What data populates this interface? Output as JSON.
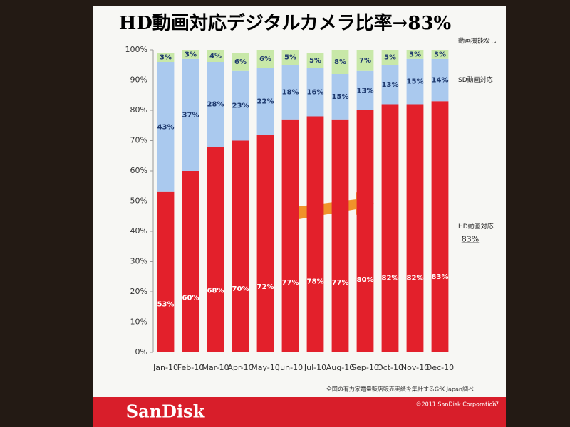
{
  "chart_data": {
    "type": "stacked_bar",
    "title": "HD動画対応デジタルカメラ比率→83%",
    "categories": [
      "Jan-10",
      "Feb-10",
      "Mar-10",
      "Apr-10",
      "May-10",
      "Jun-10",
      "Jul-10",
      "Aug-10",
      "Sep-10",
      "Oct-10",
      "Nov-10",
      "Dec-10"
    ],
    "series": [
      {
        "name": "HD動画対応",
        "color": "#e3202b",
        "values": [
          53,
          60,
          68,
          70,
          72,
          77,
          78,
          77,
          80,
          82,
          82,
          83
        ],
        "value_labels": [
          "53%",
          "60%",
          "68%",
          "70%",
          "72%",
          "77%",
          "78%",
          "77%",
          "80%",
          "82%",
          "82%",
          "83%"
        ]
      },
      {
        "name": "SD動画対応",
        "color": "#aac9ee",
        "values": [
          43,
          37,
          28,
          23,
          22,
          18,
          16,
          15,
          13,
          13,
          15,
          14
        ],
        "value_labels": [
          "43%",
          "37%",
          "28%",
          "23%",
          "22%",
          "18%",
          "16%",
          "15%",
          "13%",
          "13%",
          "15%",
          "14%"
        ]
      },
      {
        "name": "動画機能なし",
        "color": "#c8e8a8",
        "values": [
          3,
          3,
          4,
          6,
          6,
          5,
          5,
          8,
          7,
          5,
          3,
          3
        ],
        "value_labels": [
          "3%",
          "3%",
          "4%",
          "6%",
          "6%",
          "5%",
          "5%",
          "8%",
          "7%",
          "5%",
          "3%",
          "3%"
        ]
      }
    ],
    "ylim": [
      0,
      100
    ],
    "yticks": [
      {
        "value": 0,
        "label": "0%"
      },
      {
        "value": 10,
        "label": "10%"
      },
      {
        "value": 20,
        "label": "20%"
      },
      {
        "value": 30,
        "label": "30%"
      },
      {
        "value": 40,
        "label": "40%"
      },
      {
        "value": 50,
        "label": "50%"
      },
      {
        "value": 60,
        "label": "60%"
      },
      {
        "value": 70,
        "label": "70%"
      },
      {
        "value": 80,
        "label": "80%"
      },
      {
        "value": 90,
        "label": "90%"
      },
      {
        "value": 100,
        "label": "100%"
      }
    ],
    "highlight": "83%",
    "footnote": "全国の有力家電量販店販売実績を集計するGfK Japan調べ",
    "brand": "SanDisk",
    "copyright": "©2011 SanDisk Corporation",
    "page_number": "37"
  }
}
